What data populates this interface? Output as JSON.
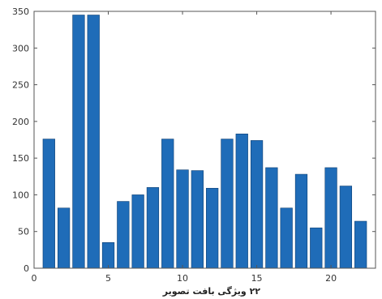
{
  "chart_data": {
    "type": "bar",
    "x": [
      1,
      2,
      3,
      4,
      5,
      6,
      7,
      8,
      9,
      10,
      11,
      12,
      13,
      14,
      15,
      16,
      17,
      18,
      19,
      20,
      21,
      22
    ],
    "values": [
      176,
      82,
      345,
      345,
      35,
      91,
      100,
      110,
      176,
      134,
      133,
      109,
      176,
      183,
      174,
      137,
      82,
      128,
      55,
      137,
      112,
      64
    ],
    "xlim": [
      0,
      23
    ],
    "ylim": [
      0,
      350
    ],
    "xticks": [
      0,
      5,
      10,
      15,
      20
    ],
    "yticks": [
      0,
      50,
      100,
      150,
      200,
      250,
      300,
      350
    ],
    "xlabel": "۲۲ ویژگی بافت تصویر",
    "ylabel": "",
    "title": "",
    "grid": false,
    "bar_color": "#1f6cb8",
    "bar_edge_color": "#0d3f73",
    "axis_color": "#555555"
  }
}
